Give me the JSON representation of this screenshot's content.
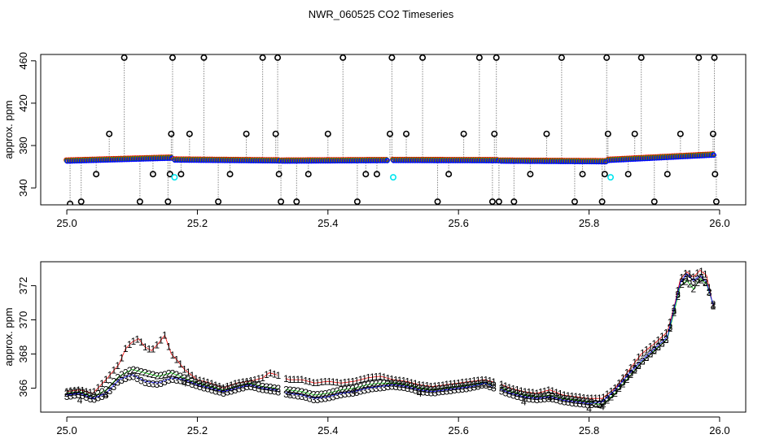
{
  "title": "NWR_060525  CO2 Timeseries",
  "chart_data": [
    {
      "type": "scatter",
      "panel": "top",
      "ylabel": "approx. ppm",
      "xlabel": "",
      "xlim": [
        24.96,
        26.04
      ],
      "ylim": [
        324,
        466
      ],
      "x_ticks": [
        "25.0",
        "25.2",
        "25.4",
        "25.6",
        "25.8",
        "26.0"
      ],
      "x_tick_values": [
        25.0,
        25.2,
        25.4,
        25.6,
        25.8,
        26.0
      ],
      "y_ticks": [
        "340",
        "380",
        "420",
        "460"
      ],
      "y_tick_values": [
        340,
        380,
        420,
        460
      ],
      "grid": false,
      "baseline_segments": [
        {
          "x": [
            25.0,
            25.16
          ],
          "y": [
            365.8,
            368.6
          ]
        },
        {
          "x": [
            25.165,
            25.325
          ],
          "y": [
            366.8,
            366.0
          ]
        },
        {
          "x": [
            25.33,
            25.49
          ],
          "y": [
            365.8,
            366.3
          ]
        },
        {
          "x": [
            25.5,
            25.66
          ],
          "y": [
            366.4,
            366.2
          ]
        },
        {
          "x": [
            25.665,
            25.825
          ],
          "y": [
            365.8,
            365.2
          ]
        },
        {
          "x": [
            25.83,
            25.99
          ],
          "y": [
            366.5,
            371.5
          ]
        }
      ],
      "outliers": [
        {
          "x": 25.005,
          "y": 325
        },
        {
          "x": 25.022,
          "y": 327
        },
        {
          "x": 25.045,
          "y": 353
        },
        {
          "x": 25.065,
          "y": 391
        },
        {
          "x": 25.088,
          "y": 463
        },
        {
          "x": 25.112,
          "y": 327
        },
        {
          "x": 25.132,
          "y": 353
        },
        {
          "x": 25.155,
          "y": 327
        },
        {
          "x": 25.158,
          "y": 353
        },
        {
          "x": 25.16,
          "y": 391
        },
        {
          "x": 25.162,
          "y": 463
        },
        {
          "x": 25.175,
          "y": 353
        },
        {
          "x": 25.188,
          "y": 391
        },
        {
          "x": 25.21,
          "y": 463
        },
        {
          "x": 25.232,
          "y": 327
        },
        {
          "x": 25.25,
          "y": 353
        },
        {
          "x": 25.275,
          "y": 391
        },
        {
          "x": 25.3,
          "y": 463
        },
        {
          "x": 25.32,
          "y": 391
        },
        {
          "x": 25.323,
          "y": 463
        },
        {
          "x": 25.325,
          "y": 353
        },
        {
          "x": 25.328,
          "y": 327
        },
        {
          "x": 25.352,
          "y": 327
        },
        {
          "x": 25.37,
          "y": 353
        },
        {
          "x": 25.4,
          "y": 391
        },
        {
          "x": 25.423,
          "y": 463
        },
        {
          "x": 25.445,
          "y": 327
        },
        {
          "x": 25.458,
          "y": 353
        },
        {
          "x": 25.475,
          "y": 353
        },
        {
          "x": 25.495,
          "y": 391
        },
        {
          "x": 25.498,
          "y": 463
        },
        {
          "x": 25.52,
          "y": 391
        },
        {
          "x": 25.545,
          "y": 463
        },
        {
          "x": 25.568,
          "y": 327
        },
        {
          "x": 25.585,
          "y": 353
        },
        {
          "x": 25.608,
          "y": 391
        },
        {
          "x": 25.632,
          "y": 463
        },
        {
          "x": 25.652,
          "y": 327
        },
        {
          "x": 25.655,
          "y": 391
        },
        {
          "x": 25.658,
          "y": 463
        },
        {
          "x": 25.662,
          "y": 327
        },
        {
          "x": 25.685,
          "y": 327
        },
        {
          "x": 25.71,
          "y": 353
        },
        {
          "x": 25.735,
          "y": 391
        },
        {
          "x": 25.758,
          "y": 463
        },
        {
          "x": 25.778,
          "y": 327
        },
        {
          "x": 25.79,
          "y": 353
        },
        {
          "x": 25.82,
          "y": 327
        },
        {
          "x": 25.824,
          "y": 353
        },
        {
          "x": 25.827,
          "y": 463
        },
        {
          "x": 25.829,
          "y": 391
        },
        {
          "x": 25.86,
          "y": 353
        },
        {
          "x": 25.87,
          "y": 391
        },
        {
          "x": 25.88,
          "y": 463
        },
        {
          "x": 25.9,
          "y": 327
        },
        {
          "x": 25.92,
          "y": 353
        },
        {
          "x": 25.94,
          "y": 391
        },
        {
          "x": 25.968,
          "y": 463
        },
        {
          "x": 25.99,
          "y": 391
        },
        {
          "x": 25.992,
          "y": 463
        },
        {
          "x": 25.993,
          "y": 353
        },
        {
          "x": 25.995,
          "y": 327
        }
      ],
      "cyan_points": [
        {
          "x": 25.165,
          "y": 350
        },
        {
          "x": 25.5,
          "y": 350
        },
        {
          "x": 25.833,
          "y": 350
        }
      ],
      "colors": {
        "series_1": "#ff0000",
        "series_2": "#00cc00",
        "series_3": "#0000ff",
        "outlier": "#000000",
        "highlight": "#00e5ee",
        "connector": "#888888"
      }
    },
    {
      "type": "scatter",
      "panel": "bottom",
      "ylabel": "approx. ppm",
      "xlabel": "",
      "xlim": [
        24.96,
        26.04
      ],
      "ylim": [
        364.6,
        373.4
      ],
      "x_ticks": [
        "25.0",
        "25.2",
        "25.4",
        "25.6",
        "25.8",
        "26.0"
      ],
      "x_tick_values": [
        25.0,
        25.2,
        25.4,
        25.6,
        25.8,
        26.0
      ],
      "y_ticks": [
        "366",
        "368",
        "370",
        "372"
      ],
      "y_tick_values": [
        366,
        368,
        370,
        372
      ],
      "grid": false,
      "point_markers": [
        "1",
        "2",
        "3",
        "4"
      ],
      "series": [
        {
          "marker": "1",
          "color": "#ff0000",
          "x": [
            25.0,
            25.02,
            25.04,
            25.06,
            25.08,
            25.09,
            25.1,
            25.11,
            25.12,
            25.13,
            25.14,
            25.15,
            25.16,
            25.17,
            25.18,
            25.2,
            25.22,
            25.24,
            25.26,
            25.28,
            25.3,
            25.31,
            25.32,
            25.34,
            25.36,
            25.38,
            25.4,
            25.42,
            25.44,
            25.46,
            25.48,
            25.5,
            25.52,
            25.54,
            25.56,
            25.58,
            25.6,
            25.62,
            25.64,
            25.66,
            25.68,
            25.7,
            25.72,
            25.74,
            25.76,
            25.78,
            25.8,
            25.82,
            25.84,
            25.86,
            25.88,
            25.9,
            25.92,
            25.93,
            25.94,
            25.95,
            25.96,
            25.97,
            25.98,
            25.99
          ],
          "y": [
            365.8,
            365.9,
            365.7,
            366.5,
            367.4,
            368.3,
            368.7,
            368.9,
            368.4,
            368.2,
            368.6,
            369.1,
            368.0,
            367.6,
            367.1,
            366.5,
            366.3,
            366.0,
            366.3,
            366.4,
            366.6,
            366.9,
            366.8,
            366.5,
            366.5,
            366.3,
            366.4,
            366.3,
            366.4,
            366.6,
            366.7,
            366.5,
            366.4,
            366.2,
            366.1,
            366.2,
            366.3,
            366.4,
            366.5,
            366.3,
            366.0,
            365.8,
            365.7,
            365.9,
            365.6,
            365.5,
            365.4,
            365.4,
            366.0,
            367.0,
            368.0,
            368.6,
            369.3,
            370.7,
            372.4,
            372.8,
            372.5,
            372.9,
            372.6,
            370.8
          ]
        },
        {
          "marker": "2",
          "color": "#00cc00",
          "x": [
            25.0,
            25.02,
            25.04,
            25.06,
            25.08,
            25.1,
            25.12,
            25.14,
            25.16,
            25.18,
            25.2,
            25.22,
            25.24,
            25.26,
            25.28,
            25.3,
            25.32,
            25.34,
            25.36,
            25.38,
            25.4,
            25.42,
            25.44,
            25.46,
            25.48,
            25.5,
            25.52,
            25.54,
            25.56,
            25.58,
            25.6,
            25.62,
            25.64,
            25.66,
            25.68,
            25.7,
            25.72,
            25.74,
            25.76,
            25.78,
            25.8,
            25.82,
            25.84,
            25.86,
            25.88,
            25.9,
            25.92,
            25.93,
            25.94,
            25.95,
            25.96,
            25.97,
            25.98,
            25.99
          ],
          "y": [
            365.7,
            365.8,
            365.5,
            365.9,
            366.7,
            367.1,
            366.9,
            366.7,
            366.9,
            366.6,
            366.3,
            366.1,
            365.9,
            366.1,
            366.3,
            366.1,
            366.0,
            365.9,
            365.8,
            365.6,
            365.7,
            365.9,
            366.0,
            366.2,
            366.3,
            366.3,
            366.2,
            366.0,
            365.9,
            366.0,
            366.1,
            366.2,
            366.3,
            366.1,
            365.8,
            365.6,
            365.5,
            365.6,
            365.4,
            365.3,
            365.2,
            365.0,
            365.7,
            366.6,
            367.5,
            368.2,
            368.9,
            370.4,
            372.0,
            372.3,
            371.8,
            372.4,
            372.1,
            370.9
          ]
        },
        {
          "marker": "3",
          "color": "#0000ff",
          "x": [
            25.0,
            25.02,
            25.04,
            25.06,
            25.08,
            25.1,
            25.12,
            25.14,
            25.16,
            25.18,
            25.2,
            25.22,
            25.24,
            25.26,
            25.28,
            25.3,
            25.32,
            25.34,
            25.36,
            25.38,
            25.4,
            25.42,
            25.44,
            25.46,
            25.48,
            25.5,
            25.52,
            25.54,
            25.56,
            25.58,
            25.6,
            25.62,
            25.64,
            25.66,
            25.68,
            25.7,
            25.72,
            25.74,
            25.76,
            25.78,
            25.8,
            25.82,
            25.84,
            25.86,
            25.88,
            25.9,
            25.92,
            25.93,
            25.94,
            25.95,
            25.96,
            25.97,
            25.98,
            25.99
          ],
          "y": [
            365.6,
            365.7,
            365.4,
            365.7,
            366.5,
            366.8,
            366.4,
            366.3,
            366.6,
            366.5,
            366.2,
            366.0,
            365.8,
            366.0,
            366.2,
            366.0,
            365.9,
            365.7,
            365.6,
            365.4,
            365.5,
            365.7,
            365.8,
            366.0,
            366.1,
            366.2,
            366.1,
            365.9,
            365.8,
            365.9,
            366.0,
            366.1,
            366.3,
            366.0,
            365.7,
            365.5,
            365.4,
            365.5,
            365.3,
            365.2,
            365.1,
            365.2,
            365.9,
            366.8,
            367.6,
            368.3,
            369.0,
            370.6,
            372.2,
            372.7,
            372.3,
            372.6,
            372.2,
            370.9
          ]
        },
        {
          "marker": "4",
          "color": "#00cc00",
          "x": [
            25.02,
            25.06,
            25.18,
            25.34,
            25.44,
            25.54,
            25.7,
            25.74,
            25.8,
            25.82
          ],
          "y": [
            365.3,
            365.6,
            366.3,
            365.7,
            365.8,
            365.7,
            365.2,
            365.4,
            364.8,
            364.9
          ]
        }
      ]
    }
  ]
}
